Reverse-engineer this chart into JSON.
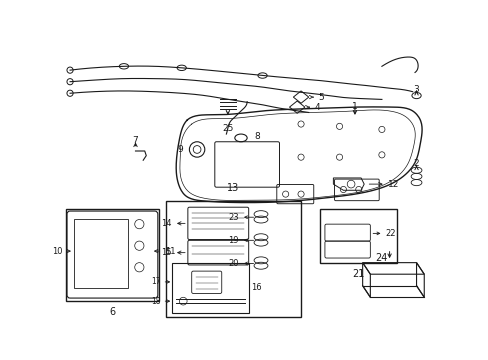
{
  "bg_color": "#ffffff",
  "lc": "#1a1a1a",
  "figsize": [
    4.89,
    3.6
  ],
  "dpi": 100
}
